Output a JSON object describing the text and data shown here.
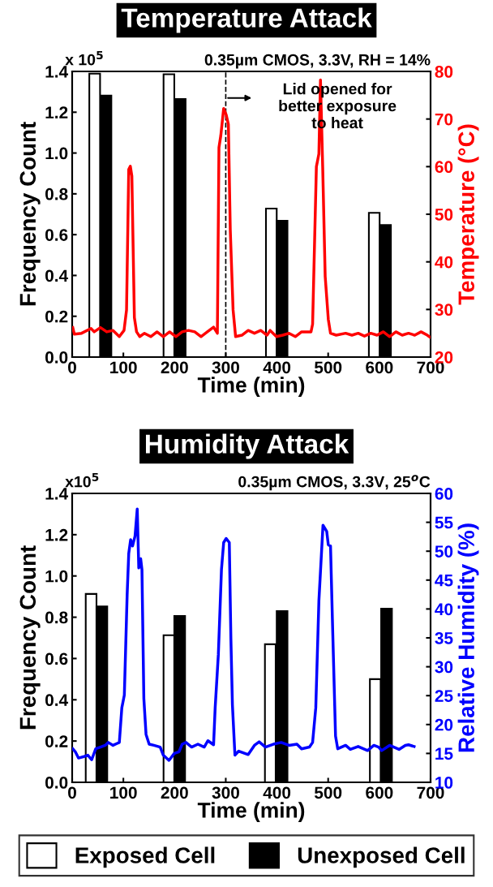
{
  "chart_data": [
    {
      "type": "bar",
      "title": "Temperature Attack",
      "xlabel": "Time (min)",
      "ylabel": "Frequency Count",
      "y2label": "Temperature (°C)",
      "annotations": [
        "x 10$^{5}$",
        "0.35µm CMOS, 3.3V, RH = 14%",
        "Lid opened for\nbetter exposure\nto heat"
      ],
      "series": [
        {
          "color": "#ffffff",
          "x": [
            44,
            189,
            389,
            590
          ],
          "values": [
            1.389,
            1.386,
            0.728,
            0.707
          ]
        },
        {
          "color": "#000000",
          "x": [
            66,
            211,
            410,
            612
          ],
          "values": [
            1.282,
            1.265,
            0.668,
            0.647
          ]
        },
        {
          "type": "line",
          "axis": "y2",
          "color": "#ff0000",
          "x": [
            1.2,
            4.3,
            18.4,
            36.8,
            43.0,
            55.2,
            67.5,
            79.8,
            92.1,
            101.3,
            106.2,
            110.5,
            113.6,
            116.6,
            121.5,
            125.8,
            132.0,
            141.2,
            153.5,
            165.7,
            178.0,
            190.3,
            202.6,
            214.9,
            227.1,
            239.4,
            251.7,
            264.0,
            276.2,
            283.6,
            286.7,
            290.4,
            295.9,
            300.8,
            305.1,
            308.8,
            314.3,
            319.2,
            331.5,
            343.8,
            356.0,
            368.3,
            380.6,
            386.7,
            399.0,
            411.3,
            423.6,
            435.9,
            448.1,
            466.5,
            469.6,
            477.0,
            481.9,
            485.0,
            489.3,
            494.2,
            500.3,
            504.6,
            515.7,
            534.1,
            546.4,
            558.6,
            570.9,
            583.2,
            595.5,
            607.7,
            620.0,
            632.3,
            644.6,
            656.9,
            669.1,
            681.4,
            693.7,
            698.6
          ],
          "values": [
            26.2,
            24.8,
            25.0,
            26.0,
            25.3,
            26.2,
            25.3,
            25.6,
            24.3,
            25.6,
            29.9,
            59.4,
            60.1,
            58.0,
            28.3,
            25.3,
            24.3,
            25.0,
            24.3,
            25.3,
            24.3,
            25.3,
            24.3,
            25.3,
            25.6,
            25.3,
            24.3,
            25.3,
            26.3,
            25.0,
            64.0,
            66.6,
            72.2,
            70.9,
            68.9,
            46.8,
            29.9,
            24.3,
            24.6,
            25.6,
            25.0,
            25.6,
            24.6,
            25.6,
            24.3,
            24.6,
            25.0,
            24.3,
            25.3,
            25.3,
            26.9,
            60.0,
            62.7,
            78.2,
            60.0,
            36.9,
            27.9,
            25.0,
            24.6,
            25.0,
            24.6,
            25.0,
            24.4,
            25.0,
            24.6,
            25.3,
            24.3,
            25.3,
            24.6,
            25.0,
            24.6,
            25.3,
            24.6,
            24.2
          ]
        }
      ],
      "ref_lines": [
        {
          "axis": "x",
          "value": 300,
          "color": "#000000",
          "line_style": "dashed"
        }
      ],
      "xlim": [
        0,
        700
      ],
      "xticks": [
        0,
        100,
        200,
        300,
        400,
        500,
        600,
        700
      ],
      "ylim": [
        0,
        1.4
      ],
      "yticks": [
        {
          "value": 0,
          "label": "0.0"
        },
        {
          "value": 0.2,
          "label": "0.2"
        },
        {
          "value": 0.4,
          "label": "0.4"
        },
        {
          "value": 0.6,
          "label": "0.6"
        },
        {
          "value": 0.8,
          "label": "0.8"
        },
        {
          "value": 1.0,
          "label": "1.0"
        },
        {
          "value": 1.2,
          "label": "1.2"
        },
        {
          "value": 1.4,
          "label": "1.4"
        }
      ],
      "y2lim": [
        20,
        80
      ],
      "y2ticks": [
        20,
        30,
        40,
        50,
        60,
        70,
        80
      ],
      "grid": false
    },
    {
      "type": "bar",
      "title": "Humidity Attack",
      "xlabel": "Time (min)",
      "ylabel": "Frequency Count",
      "y2label": "Relative Humidity (%)",
      "annotations": [
        "x10$^{5}$",
        "0.35µm CMOS, 3.3V, 25$^{o}$C"
      ],
      "series": [
        {
          "name": "Exposed Cell",
          "color": "#ffffff",
          "x": [
            37,
            189,
            387,
            592
          ],
          "values": [
            0.913,
            0.713,
            0.669,
            0.5
          ]
        },
        {
          "name": "Unexposed Cell",
          "color": "#000000",
          "x": [
            58,
            210,
            410,
            614
          ],
          "values": [
            0.852,
            0.806,
            0.83,
            0.841
          ]
        },
        {
          "type": "line",
          "axis": "y2",
          "color": "#0000ff",
          "x": [
            1.2,
            6.1,
            12.3,
            24.6,
            30.7,
            38.1,
            46.0,
            55.2,
            64.5,
            70.6,
            79.8,
            87.2,
            92.1,
            97.0,
            101.9,
            107.4,
            110.5,
            114.2,
            117.9,
            122.8,
            127.1,
            130.1,
            133.8,
            136.3,
            140.0,
            144.3,
            150.4,
            159.6,
            171.9,
            178.0,
            189.1,
            199.5,
            208.7,
            214.9,
            222.3,
            233.3,
            245.6,
            257.9,
            265.2,
            276.2,
            279.3,
            285.5,
            291.6,
            295.9,
            300.8,
            306.9,
            310.0,
            313.0,
            317.9,
            325.3,
            343.8,
            356.0,
            365.2,
            377.5,
            392.9,
            408.2,
            423.6,
            439.0,
            448.1,
            463.5,
            469.6,
            475.8,
            481.9,
            489.9,
            497.2,
            500.3,
            504.6,
            508.3,
            514.4,
            518.7,
            534.1,
            543.3,
            558.6,
            577.0,
            589.3,
            598.5,
            604.6,
            620.0,
            638.4,
            650.7,
            656.9,
            667.9
          ],
          "values": [
            15.8,
            15.3,
            14.2,
            14.5,
            14.7,
            13.9,
            15.8,
            16.1,
            16.4,
            16.9,
            16.4,
            16.7,
            16.9,
            22.9,
            25.1,
            42.5,
            49.6,
            52.0,
            50.9,
            52.6,
            57.3,
            47.1,
            48.7,
            46.8,
            24.5,
            18.3,
            16.6,
            16.4,
            16.1,
            14.7,
            13.8,
            15.0,
            15.3,
            16.6,
            16.9,
            16.1,
            16.6,
            16.1,
            17.2,
            16.5,
            22.9,
            32.1,
            46.8,
            51.5,
            52.2,
            51.5,
            34.9,
            23.4,
            14.7,
            15.4,
            14.8,
            16.4,
            17.0,
            16.1,
            16.6,
            16.9,
            16.4,
            16.6,
            15.8,
            16.1,
            16.9,
            22.9,
            41.4,
            54.5,
            53.4,
            51.1,
            50.9,
            38.1,
            18.0,
            15.8,
            16.4,
            15.7,
            16.2,
            15.5,
            16.4,
            16.1,
            15.5,
            16.4,
            15.7,
            16.4,
            16.5,
            16.2
          ]
        }
      ],
      "xlim": [
        0,
        700
      ],
      "xticks": [
        0,
        100,
        200,
        300,
        400,
        500,
        600,
        700
      ],
      "ylim": [
        0,
        1.4
      ],
      "yticks": [
        {
          "value": 0,
          "label": "0.0"
        },
        {
          "value": 0.2,
          "label": "0.2"
        },
        {
          "value": 0.4,
          "label": "0.4"
        },
        {
          "value": 0.6,
          "label": "0.6"
        },
        {
          "value": 0.8,
          "label": "0.8"
        },
        {
          "value": 1.0,
          "label": "1.0"
        },
        {
          "value": 1.2,
          "label": "1.2"
        },
        {
          "value": 1.4,
          "label": "1.4"
        }
      ],
      "y2lim": [
        10,
        60
      ],
      "y2ticks": [
        10,
        15,
        20,
        25,
        30,
        35,
        40,
        45,
        50,
        55,
        60
      ],
      "grid": false,
      "legend": "bottom"
    }
  ]
}
